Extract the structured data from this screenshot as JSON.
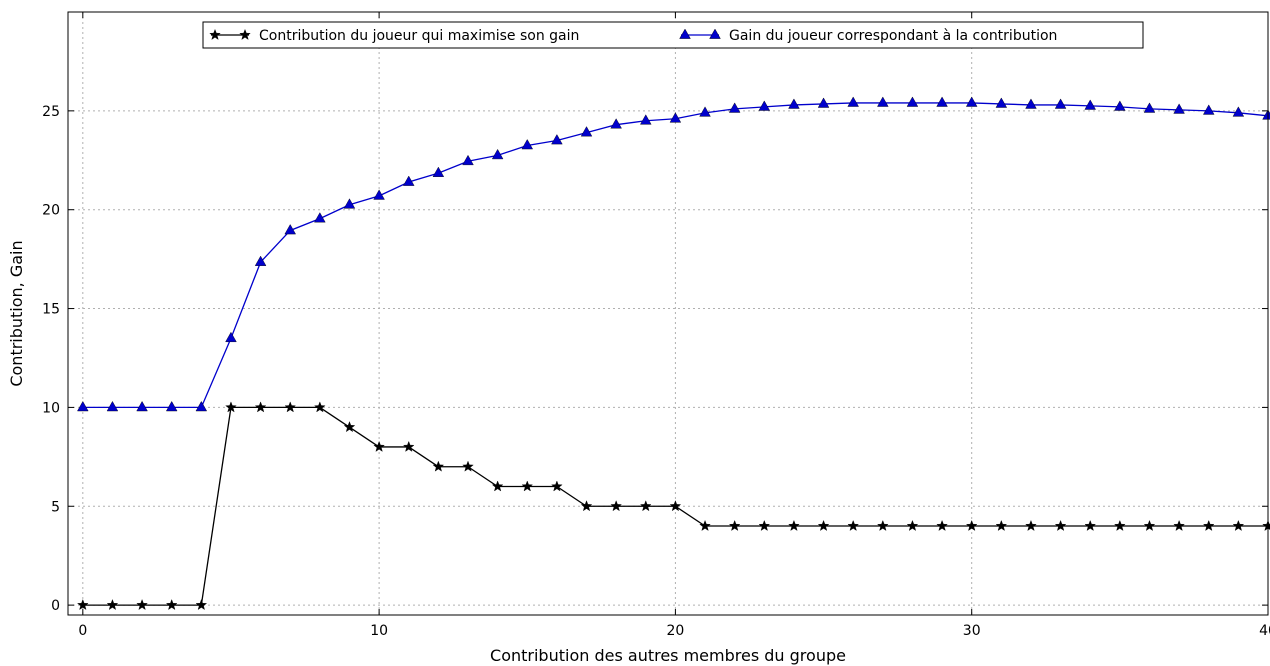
{
  "chart_data": {
    "type": "line",
    "xlabel": "Contribution des autres membres du groupe",
    "ylabel": "Contribution, Gain",
    "xlim": [
      -0.5,
      40
    ],
    "ylim": [
      -0.5,
      30
    ],
    "xticks": [
      0,
      10,
      20,
      30,
      40
    ],
    "yticks": [
      0,
      5,
      10,
      15,
      20,
      25
    ],
    "grid": true,
    "legend_position": "top-center",
    "x": [
      0,
      1,
      2,
      3,
      4,
      5,
      6,
      7,
      8,
      9,
      10,
      11,
      12,
      13,
      14,
      15,
      16,
      17,
      18,
      19,
      20,
      21,
      22,
      23,
      24,
      25,
      26,
      27,
      28,
      29,
      30,
      31,
      32,
      33,
      34,
      35,
      36,
      37,
      38,
      39,
      40
    ],
    "series": [
      {
        "name": "Contribution du joueur qui maximise son gain",
        "color": "#000000",
        "marker": "star",
        "values": [
          0,
          0,
          0,
          0,
          0,
          10,
          10,
          10,
          10,
          9,
          8,
          8,
          7,
          7,
          6,
          6,
          6,
          5,
          5,
          5,
          5,
          4,
          4,
          4,
          4,
          4,
          4,
          4,
          4,
          4,
          4,
          4,
          4,
          4,
          4,
          4,
          4,
          4,
          4,
          4,
          4
        ]
      },
      {
        "name": "Gain du joueur correspondant à la contribution",
        "color": "#0000cc",
        "marker": "triangle",
        "values": [
          10,
          10,
          10,
          10,
          10,
          13.5,
          17.35,
          18.95,
          19.55,
          20.25,
          20.7,
          21.4,
          21.85,
          22.45,
          22.75,
          23.25,
          23.5,
          23.9,
          24.3,
          24.5,
          24.6,
          24.9,
          25.1,
          25.2,
          25.3,
          25.35,
          25.4,
          25.4,
          25.4,
          25.4,
          25.4,
          25.35,
          25.3,
          25.3,
          25.25,
          25.2,
          25.1,
          25.05,
          25.0,
          24.9,
          24.75
        ]
      }
    ]
  }
}
